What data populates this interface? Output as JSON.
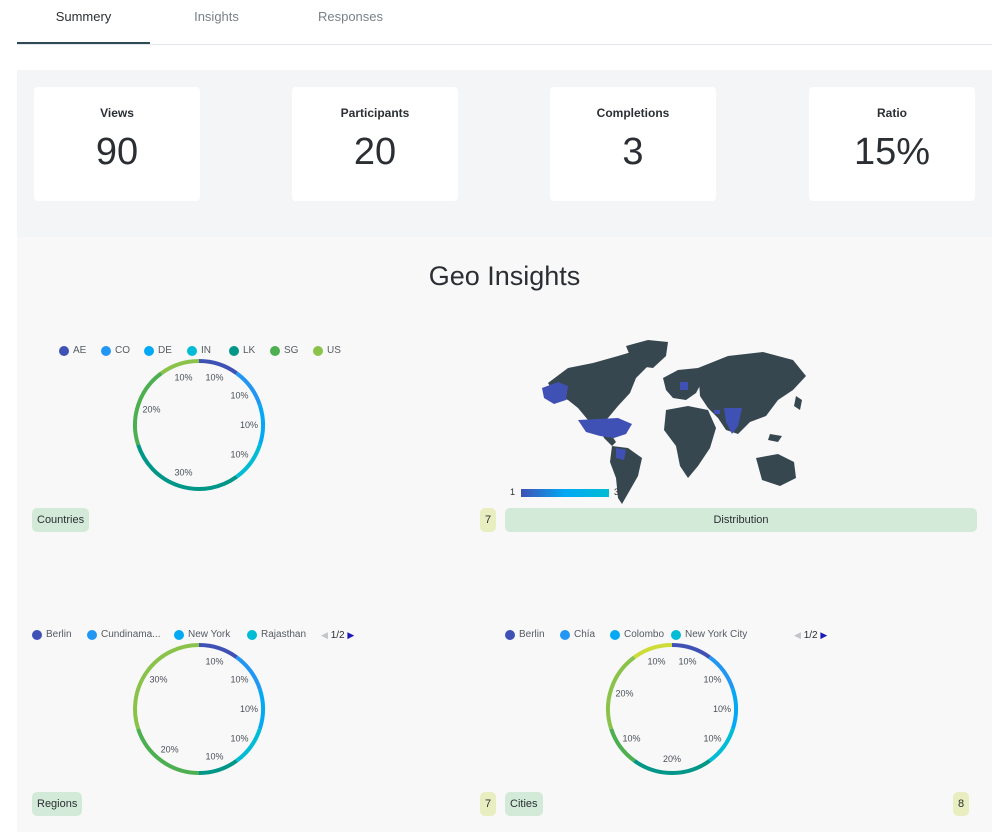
{
  "tabs": [
    {
      "label": "Summery"
    },
    {
      "label": "Insights"
    },
    {
      "label": "Responses"
    }
  ],
  "stats": [
    {
      "label": "Views",
      "value": "90"
    },
    {
      "label": "Participants",
      "value": "20"
    },
    {
      "label": "Completions",
      "value": "3"
    },
    {
      "label": "Ratio",
      "value": "15%"
    }
  ],
  "geo": {
    "title": "Geo Insights",
    "map": {
      "label": "Distribution",
      "count": "7",
      "scale_min": "1",
      "scale_max": "3",
      "land_color": "#37474f",
      "highlight_color": "#3f51b5"
    }
  },
  "chart_data": [
    {
      "type": "pie",
      "name": "Countries",
      "count": "7",
      "legend": [
        "AE",
        "CO",
        "DE",
        "IN",
        "LK",
        "SG",
        "US"
      ],
      "slices": [
        {
          "label": "AE",
          "value": 10,
          "color": "#3f51b5"
        },
        {
          "label": "CO",
          "value": 10,
          "color": "#2196f3"
        },
        {
          "label": "DE",
          "value": 10,
          "color": "#03a9f4"
        },
        {
          "label": "IN",
          "value": 10,
          "color": "#00bcd4"
        },
        {
          "label": "LK",
          "value": 30,
          "color": "#009688"
        },
        {
          "label": "SG",
          "value": 20,
          "color": "#4caf50"
        },
        {
          "label": "US",
          "value": 10,
          "color": "#8bc34a"
        }
      ]
    },
    {
      "type": "pie",
      "name": "Regions",
      "count": "7",
      "legend": [
        "Berlin",
        "Cundinama...",
        "New York",
        "Rajasthan"
      ],
      "pager": "1/2",
      "slices": [
        {
          "label": "Berlin",
          "value": 10,
          "color": "#3f51b5"
        },
        {
          "label": "Cundinamarca",
          "value": 10,
          "color": "#2196f3"
        },
        {
          "label": "New York",
          "value": 10,
          "color": "#03a9f4"
        },
        {
          "label": "Rajasthan",
          "value": 10,
          "color": "#00bcd4"
        },
        {
          "label": "",
          "value": 10,
          "color": "#009688"
        },
        {
          "label": "",
          "value": 20,
          "color": "#4caf50"
        },
        {
          "label": "",
          "value": 30,
          "color": "#8bc34a"
        }
      ]
    },
    {
      "type": "pie",
      "name": "Cities",
      "count": "8",
      "legend": [
        "Berlin",
        "Chía",
        "Colombo",
        "New York City"
      ],
      "pager": "1/2",
      "slices": [
        {
          "label": "Berlin",
          "value": 10,
          "color": "#3f51b5"
        },
        {
          "label": "Chía",
          "value": 10,
          "color": "#2196f3"
        },
        {
          "label": "Colombo",
          "value": 10,
          "color": "#03a9f4"
        },
        {
          "label": "New York City",
          "value": 10,
          "color": "#00bcd4"
        },
        {
          "label": "",
          "value": 20,
          "color": "#009688"
        },
        {
          "label": "",
          "value": 10,
          "color": "#4caf50"
        },
        {
          "label": "",
          "value": 20,
          "color": "#8bc34a"
        },
        {
          "label": "",
          "value": 10,
          "color": "#cddc39"
        }
      ]
    }
  ]
}
